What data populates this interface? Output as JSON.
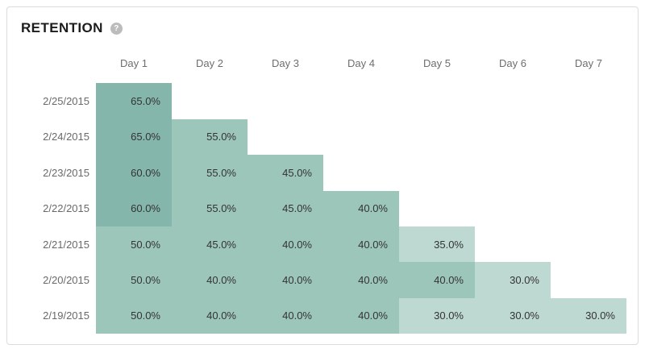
{
  "card": {
    "title": "RETENTION",
    "help_icon": "?"
  },
  "chart_data": {
    "type": "heatmap",
    "title": "RETENTION",
    "columns": [
      "Day 1",
      "Day 2",
      "Day 3",
      "Day 4",
      "Day 5",
      "Day 6",
      "Day 7"
    ],
    "rows": [
      {
        "label": "2/25/2015",
        "values": [
          65.0
        ]
      },
      {
        "label": "2/24/2015",
        "values": [
          65.0,
          55.0
        ]
      },
      {
        "label": "2/23/2015",
        "values": [
          60.0,
          55.0,
          45.0
        ]
      },
      {
        "label": "2/22/2015",
        "values": [
          60.0,
          55.0,
          45.0,
          40.0
        ]
      },
      {
        "label": "2/21/2015",
        "values": [
          50.0,
          45.0,
          40.0,
          40.0,
          35.0
        ]
      },
      {
        "label": "2/20/2015",
        "values": [
          50.0,
          40.0,
          40.0,
          40.0,
          40.0,
          30.0
        ]
      },
      {
        "label": "2/19/2015",
        "values": [
          50.0,
          40.0,
          40.0,
          40.0,
          30.0,
          30.0,
          30.0
        ]
      }
    ],
    "value_suffix": "%",
    "value_decimals": 1,
    "color_scale": [
      {
        "min": 60,
        "color": "#85b6ac"
      },
      {
        "min": 40,
        "color": "#9dc6bb"
      },
      {
        "min": 0,
        "color": "#bed9d1"
      }
    ],
    "layout": {
      "grid": false,
      "legend": "none"
    }
  }
}
